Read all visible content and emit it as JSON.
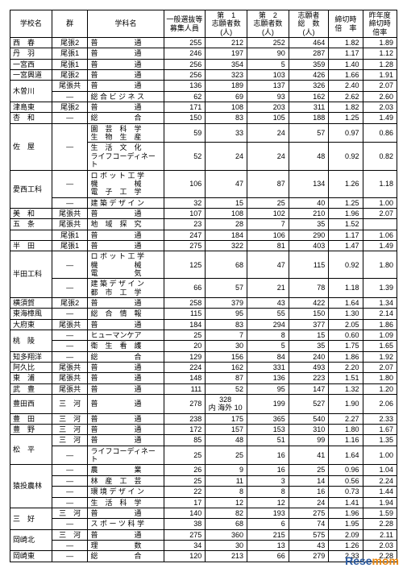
{
  "columns": [
    "学校名",
    "群",
    "学科名",
    "一般選抜等\n募集人員",
    "第　1\n志願者数\n(人)",
    "第　2\n志願者数\n(人)",
    "志願者\n総　数\n(人)",
    "締切時\n倍　率",
    "昨年度\n締切時\n倍率"
  ],
  "col_widths": [
    "44px",
    "38px",
    "80px",
    "44px",
    "44px",
    "44px",
    "42px",
    "36px",
    "36px"
  ],
  "logo": {
    "re": "Rese",
    "mom": "mom"
  },
  "rows": [
    {
      "school": "西　春",
      "gun": "尾張2",
      "dept": "普　　　　　通",
      "a": 255,
      "b": 212,
      "c": 252,
      "d": 464,
      "e": "1.82",
      "f": "1.89"
    },
    {
      "school": "丹　羽",
      "gun": "尾張1",
      "dept": "普　　　　　通",
      "a": 246,
      "b": 197,
      "c": 90,
      "d": 287,
      "e": "1.17",
      "f": "1.12"
    },
    {
      "school": "一宮西",
      "gun": "尾張1",
      "dept": "普　　　　　通",
      "a": 256,
      "b": 354,
      "c": 5,
      "d": 359,
      "e": "1.40",
      "f": "1.28"
    },
    {
      "school": "一宮興道",
      "gun": "尾張2",
      "dept": "普　　　　　通",
      "a": 256,
      "b": 323,
      "c": 103,
      "d": 426,
      "e": "1.66",
      "f": "1.91"
    },
    {
      "school": "木曽川",
      "gun": "尾張共",
      "dept": "普　　　　　通",
      "a": 136,
      "b": 189,
      "c": 137,
      "d": 326,
      "e": "2.40",
      "f": "2.07",
      "school_span": 2
    },
    {
      "gun": "―",
      "dept": "総 合 ビ ジ ネ ス",
      "a": 62,
      "b": 69,
      "c": 93,
      "d": 162,
      "e": "2.62",
      "f": "2.60"
    },
    {
      "school": "津島東",
      "gun": "尾張2",
      "dept": "普　　　　　通",
      "a": 171,
      "b": 108,
      "c": 203,
      "d": 311,
      "e": "1.82",
      "f": "2.03"
    },
    {
      "school": "杏　和",
      "gun": "―",
      "dept": "総　　　　　合",
      "a": 150,
      "b": 83,
      "c": 105,
      "d": 188,
      "e": "1.25",
      "f": "1.49"
    },
    {
      "school": "佐　屋",
      "gun": "―",
      "dept": "園　芸　科　学\n生　物　生　産",
      "a": 59,
      "b": 33,
      "c": 24,
      "d": 57,
      "e": "0.97",
      "f": "0.86",
      "school_span": 2,
      "gun_span": 2
    },
    {
      "dept": "生　活　文　化\nライフコーディネート",
      "a": 52,
      "b": 24,
      "c": 24,
      "d": 48,
      "e": "0.92",
      "f": "0.82"
    },
    {
      "school": "愛西工科",
      "gun": "―",
      "dept": "ロ ボ ッ ト 工 学\n機　　　　　械\n電　子　工　学",
      "a": 106,
      "b": 47,
      "c": 87,
      "d": 134,
      "e": "1.26",
      "f": "1.18",
      "school_span": 2
    },
    {
      "gun": "―",
      "dept": "建 築 デ ザ イ ン",
      "a": 32,
      "b": 15,
      "c": 25,
      "d": 40,
      "e": "1.25",
      "f": "1.00"
    },
    {
      "school": "美　和",
      "gun": "尾張共",
      "dept": "普　　　　　通",
      "a": 107,
      "b": 108,
      "c": 102,
      "d": 210,
      "e": "1.96",
      "f": "2.07"
    },
    {
      "school": "五　条",
      "gun": "尾張共",
      "dept": "地　域　探　究",
      "a": 23,
      "b": 28,
      "c": 7,
      "d": 35,
      "e": "1.52",
      "f": ""
    },
    {
      "school": "",
      "gun": "尾張1",
      "dept": "普　　　　　通",
      "a": 247,
      "b": 184,
      "c": 106,
      "d": 290,
      "e": "1.17",
      "f": "1.06",
      "school_merge_up": true,
      "override_school": "五　条",
      "hide_override": true
    },
    {
      "school": "半　田",
      "gun": "尾張1",
      "dept": "普　　　　　通",
      "a": 275,
      "b": 322,
      "c": 81,
      "d": 403,
      "e": "1.47",
      "f": "1.49"
    },
    {
      "school": "半田工科",
      "gun": "―",
      "dept": "ロ ボ ッ ト 工 学\n機　　　　　械\n電　　　　　気",
      "a": 125,
      "b": 68,
      "c": 47,
      "d": 115,
      "e": "0.92",
      "f": "1.80",
      "school_span": 2
    },
    {
      "gun": "―",
      "dept": "建 築 デ ザ イ ン\n都　市　工　学",
      "a": 66,
      "b": 57,
      "c": 21,
      "d": 78,
      "e": "1.18",
      "f": "1.39"
    },
    {
      "school": "横須賀",
      "gun": "尾張2",
      "dept": "普　　　　　通",
      "a": 258,
      "b": 379,
      "c": 43,
      "d": 422,
      "e": "1.64",
      "f": "1.34"
    },
    {
      "school": "東海樟風",
      "gun": "―",
      "dept": "総　合　情　報",
      "a": 115,
      "b": 95,
      "c": 55,
      "d": 150,
      "e": "1.30",
      "f": "2.14"
    },
    {
      "school": "大府東",
      "gun": "尾張共",
      "dept": "普　　　　　通",
      "a": 184,
      "b": 83,
      "c": 294,
      "d": 377,
      "e": "2.05",
      "f": "1.86"
    },
    {
      "school": "桃　陵",
      "gun": "―",
      "dept": "ヒューマンケア",
      "a": 25,
      "b": 7,
      "c": 8,
      "d": 15,
      "e": "0.60",
      "f": "1.09",
      "school_span": 2
    },
    {
      "gun": "―",
      "dept": "衛　生　看　護",
      "a": 20,
      "b": 30,
      "c": 5,
      "d": 35,
      "e": "1.75",
      "f": "1.65"
    },
    {
      "school": "知多翔洋",
      "gun": "―",
      "dept": "総　　　　　合",
      "a": 129,
      "b": 156,
      "c": 84,
      "d": 240,
      "e": "1.86",
      "f": "1.92"
    },
    {
      "school": "阿久比",
      "gun": "尾張共",
      "dept": "普　　　　　通",
      "a": 224,
      "b": 162,
      "c": 331,
      "d": 493,
      "e": "2.20",
      "f": "2.07"
    },
    {
      "school": "東　浦",
      "gun": "尾張共",
      "dept": "普　　　　　通",
      "a": 148,
      "b": 87,
      "c": 136,
      "d": 223,
      "e": "1.51",
      "f": "1.80"
    },
    {
      "school": "武　豊",
      "gun": "尾張共",
      "dept": "普　　　　　通",
      "a": 111,
      "b": 52,
      "c": 95,
      "d": 147,
      "e": "1.32",
      "f": "1.20"
    },
    {
      "school": "豊田西",
      "gun": "三　河",
      "dept": "普　　　　　通",
      "a": 278,
      "b": "328\n内 海外 10",
      "c": 199,
      "d": 527,
      "e": "1.90",
      "f": "2.06"
    },
    {
      "school": "豊　田",
      "gun": "三　河",
      "dept": "普　　　　　通",
      "a": 238,
      "b": 175,
      "c": 365,
      "d": 540,
      "e": "2.27",
      "f": "2.33"
    },
    {
      "school": "豊　野",
      "gun": "三　河",
      "dept": "普　　　　　通",
      "a": 172,
      "b": 157,
      "c": 153,
      "d": 310,
      "e": "1.80",
      "f": "1.67"
    },
    {
      "school": "松　平",
      "gun": "三　河",
      "dept": "普　　　　　通",
      "a": 85,
      "b": 48,
      "c": 51,
      "d": 99,
      "e": "1.16",
      "f": "1.35",
      "school_span": 2
    },
    {
      "gun": "―",
      "dept": "ライフコーディネート",
      "a": 25,
      "b": 25,
      "c": 16,
      "d": 41,
      "e": "1.64",
      "f": "1.00"
    },
    {
      "school": "猿投農林",
      "gun": "―",
      "dept": "農　　　　　業",
      "a": 26,
      "b": 9,
      "c": 16,
      "d": 25,
      "e": "0.96",
      "f": "1.04",
      "school_span": 4
    },
    {
      "gun": "―",
      "dept": "林　産　工　芸",
      "a": 25,
      "b": 11,
      "c": 3,
      "d": 14,
      "e": "0.56",
      "f": "2.24"
    },
    {
      "gun": "―",
      "dept": "環 境 デ ザ イ ン",
      "a": 22,
      "b": 8,
      "c": 8,
      "d": 16,
      "e": "0.73",
      "f": "1.44"
    },
    {
      "gun": "―",
      "dept": "生　活　科　学",
      "a": 17,
      "b": 12,
      "c": 12,
      "d": 24,
      "e": "1.41",
      "f": "1.94"
    },
    {
      "school": "三　好",
      "gun": "三　河",
      "dept": "普　　　　　通",
      "a": 140,
      "b": 82,
      "c": 193,
      "d": 275,
      "e": "1.96",
      "f": "1.59",
      "school_span": 2
    },
    {
      "gun": "―",
      "dept": "ス ポ ー ツ 科 学",
      "a": 38,
      "b": 68,
      "c": 6,
      "d": 74,
      "e": "1.95",
      "f": "2.28"
    },
    {
      "school": "岡崎北",
      "gun": "三　河",
      "dept": "普　　　　　通",
      "a": 275,
      "b": 360,
      "c": 215,
      "d": 575,
      "e": "2.09",
      "f": "2.11",
      "school_span": 2
    },
    {
      "gun": "―",
      "dept": "理　　　　　数",
      "a": 34,
      "b": 30,
      "c": 13,
      "d": 43,
      "e": "1.26",
      "f": "2.03"
    },
    {
      "school": "岡崎東",
      "gun": "―",
      "dept": "総　　　　　合",
      "a": 120,
      "b": 213,
      "c": 66,
      "d": 279,
      "e": "2.33",
      "f": "2.28"
    }
  ]
}
